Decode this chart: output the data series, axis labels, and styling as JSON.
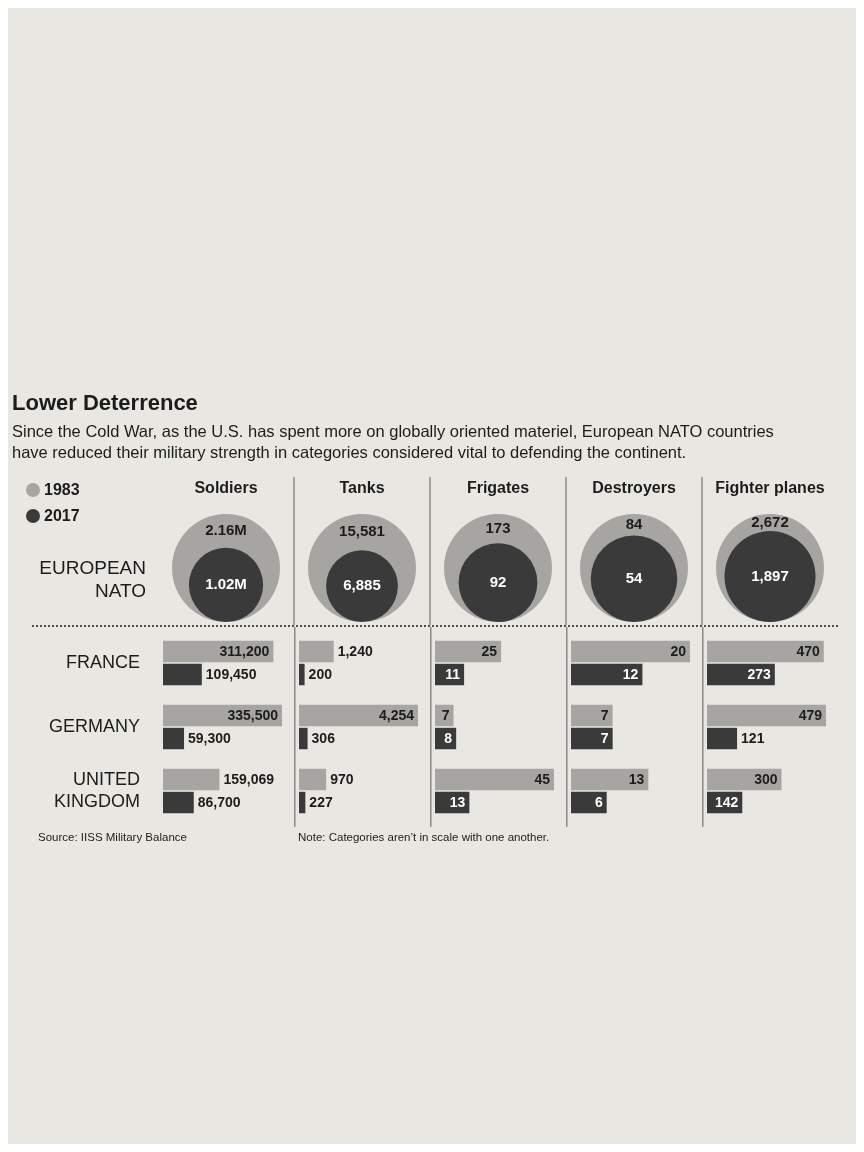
{
  "chart_data": [
    {
      "type": "other",
      "title": "Lower Deterrence",
      "subtitle": "Since the Cold War, as the U.S. has spent more on globally oriented materiel, European NATO countries have reduced their military strength in categories considered vital to defending the continent.",
      "ylabel": "EUROPEAN NATO",
      "legend": "top left",
      "categories": [
        "Soldiers",
        "Tanks",
        "Frigates",
        "Destroyers",
        "Fighter planes"
      ],
      "series": [
        {
          "name": "1983",
          "color": "#a6a5a1",
          "values": [
            2160000,
            15581,
            173,
            84,
            2672
          ],
          "value_labels": [
            "2.16M",
            "15,581",
            "173",
            "84",
            "2,672"
          ]
        },
        {
          "name": "2017",
          "color": "#3a3a3a",
          "values": [
            1020000,
            6885,
            92,
            54,
            1897
          ],
          "value_labels": [
            "1.02M",
            "6,885",
            "92",
            "54",
            "1,897"
          ]
        }
      ]
    },
    {
      "type": "bar",
      "orientation": "horizontal",
      "tick_labels": "y",
      "categories": [
        "FRANCE",
        "GERMANY",
        "UNITED KINGDOM"
      ],
      "series": [
        {
          "color": "#a6a5a1",
          "values": [
            311200,
            335500,
            159069
          ],
          "value_labels": [
            "311,200",
            "335,500",
            "159,069"
          ]
        },
        {
          "color": "#3a3a3a",
          "values": [
            109450,
            59300,
            86700
          ],
          "value_labels": [
            "109,450",
            "59,300",
            "86,700"
          ]
        }
      ],
      "annotations": [
        "Source: IISS Military Balance"
      ]
    },
    {
      "type": "bar",
      "orientation": "horizontal",
      "tick_labels": false,
      "categories": [
        null,
        null,
        null
      ],
      "series": [
        {
          "color": "#a6a5a1",
          "values": [
            1240,
            4254,
            970
          ],
          "value_labels": [
            "1,240",
            "4,254",
            "970"
          ]
        },
        {
          "color": "#3a3a3a",
          "values": [
            200,
            306,
            227
          ],
          "value_labels": [
            "200",
            "306",
            "227"
          ]
        }
      ],
      "annotations": [
        "Note: Categories aren’t in scale with one another."
      ]
    },
    {
      "type": "bar",
      "orientation": "horizontal",
      "tick_labels": false,
      "categories": [
        null,
        null,
        null
      ],
      "series": [
        {
          "color": "#a6a5a1",
          "values": [
            25,
            7,
            45
          ],
          "value_labels": [
            "25",
            "7",
            "45"
          ]
        },
        {
          "color": "#3a3a3a",
          "values": [
            11,
            8,
            13
          ],
          "value_labels": [
            "11",
            "8",
            "13"
          ]
        }
      ]
    },
    {
      "type": "bar",
      "orientation": "horizontal",
      "tick_labels": false,
      "categories": [
        null,
        null,
        null
      ],
      "series": [
        {
          "color": "#a6a5a1",
          "values": [
            20,
            7,
            13
          ],
          "value_labels": [
            "20",
            "7",
            "13"
          ]
        },
        {
          "color": "#3a3a3a",
          "values": [
            12,
            7,
            6
          ],
          "value_labels": [
            "12",
            "7",
            "6"
          ]
        }
      ]
    },
    {
      "type": "bar",
      "orientation": "horizontal",
      "tick_labels": false,
      "categories": [
        null,
        null,
        null
      ],
      "series": [
        {
          "color": "#a6a5a1",
          "values": [
            470,
            479,
            300
          ],
          "value_labels": [
            "470",
            "479",
            "300"
          ]
        },
        {
          "color": "#3a3a3a",
          "values": [
            273,
            121,
            142
          ],
          "value_labels": [
            "273",
            "121",
            "142"
          ]
        }
      ]
    }
  ]
}
